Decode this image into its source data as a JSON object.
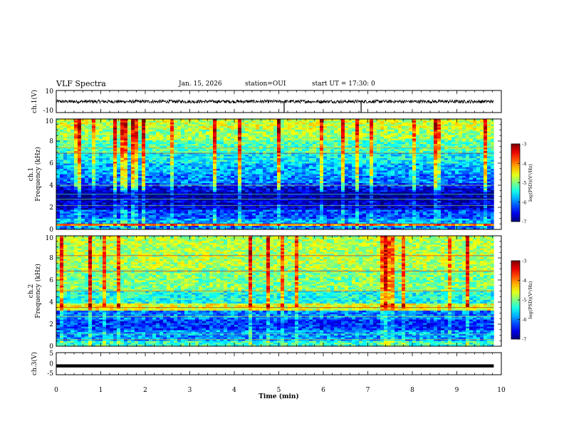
{
  "header": {
    "title": "VLF Spectra",
    "date": "Jan. 15, 2026",
    "station": "station=OUI",
    "start_ut": "start UT =  17:30: 0"
  },
  "chart_data": [
    {
      "type": "line",
      "name": "ch1-waveform",
      "ylabel": "ch.1(V)",
      "ylim": [
        -10,
        10
      ],
      "yticks": [
        "10",
        "-10"
      ],
      "xlim": [
        0,
        10
      ],
      "data_extent_min": 9.83,
      "baseline": 0,
      "approx_amplitude": 1.5
    },
    {
      "type": "heatmap",
      "name": "ch1-spectrogram",
      "ylabel": "ch.1\nFrequency (kHz)",
      "ylim": [
        0,
        10
      ],
      "yticks": [
        "0",
        "2",
        "4",
        "6",
        "8",
        "10"
      ],
      "xlim": [
        0,
        10
      ],
      "data_extent_min": 9.83,
      "colorbar": {
        "label": "log(PSD)(V²/Hz)",
        "range": [
          -7,
          -3
        ],
        "ticks": [
          "-3",
          "-4",
          "-5",
          "-6",
          "-7"
        ]
      },
      "bands": [
        {
          "f": [
            0.0,
            0.3
          ],
          "v": -6.0
        },
        {
          "f": [
            0.3,
            0.5
          ],
          "v": -4.1
        },
        {
          "f": [
            0.5,
            1.0
          ],
          "v": -5.8
        },
        {
          "f": [
            1.0,
            1.7
          ],
          "v": -6.2
        },
        {
          "f": [
            1.7,
            2.6
          ],
          "v": -6.7
        },
        {
          "f": [
            2.6,
            3.4
          ],
          "v": -6.9
        },
        {
          "f": [
            3.4,
            3.8
          ],
          "v": -6.6
        },
        {
          "f": [
            3.8,
            4.2
          ],
          "v": -6.3
        },
        {
          "f": [
            4.2,
            5.0
          ],
          "v": -6.0
        },
        {
          "f": [
            5.0,
            6.0
          ],
          "v": -5.8
        },
        {
          "f": [
            6.0,
            7.0
          ],
          "v": -5.5
        },
        {
          "f": [
            7.0,
            8.0
          ],
          "v": -5.2
        },
        {
          "f": [
            8.0,
            9.0
          ],
          "v": -4.9
        },
        {
          "f": [
            9.0,
            10.0
          ],
          "v": -4.7
        }
      ]
    },
    {
      "type": "heatmap",
      "name": "ch2-spectrogram",
      "ylabel": "ch.2\nFrequency (kHz)",
      "ylim": [
        0,
        10
      ],
      "yticks": [
        "0",
        "2",
        "4",
        "6",
        "8",
        "10"
      ],
      "xlim": [
        0,
        10
      ],
      "data_extent_min": 9.83,
      "colorbar": {
        "label": "log(PSD)(V²/Hz)",
        "range": [
          -7,
          -3
        ],
        "ticks": [
          "-3",
          "-4",
          "-5",
          "-6",
          "-7"
        ]
      },
      "bands": [
        {
          "f": [
            0.0,
            0.5
          ],
          "v": -5.3
        },
        {
          "f": [
            0.5,
            1.5
          ],
          "v": -5.9
        },
        {
          "f": [
            1.5,
            2.5
          ],
          "v": -6.3
        },
        {
          "f": [
            2.5,
            3.3
          ],
          "v": -6.0
        },
        {
          "f": [
            3.3,
            3.8
          ],
          "v": -4.6
        },
        {
          "f": [
            3.8,
            5.0
          ],
          "v": -5.4
        },
        {
          "f": [
            5.0,
            7.0
          ],
          "v": -5.0
        },
        {
          "f": [
            7.0,
            10.0
          ],
          "v": -4.8
        }
      ]
    },
    {
      "type": "line",
      "name": "ch3-waveform",
      "ylabel": "ch.3(V)",
      "ylim": [
        -5,
        5
      ],
      "yticks": [
        "5",
        "0",
        "-5"
      ],
      "xlim": [
        0,
        10
      ],
      "data_extent_min": 9.83,
      "constant_value": -1.0,
      "xlabel": "Time (min)",
      "xticks": [
        "0",
        "1",
        "2",
        "3",
        "4",
        "5",
        "6",
        "7",
        "8",
        "9",
        "10"
      ]
    }
  ]
}
